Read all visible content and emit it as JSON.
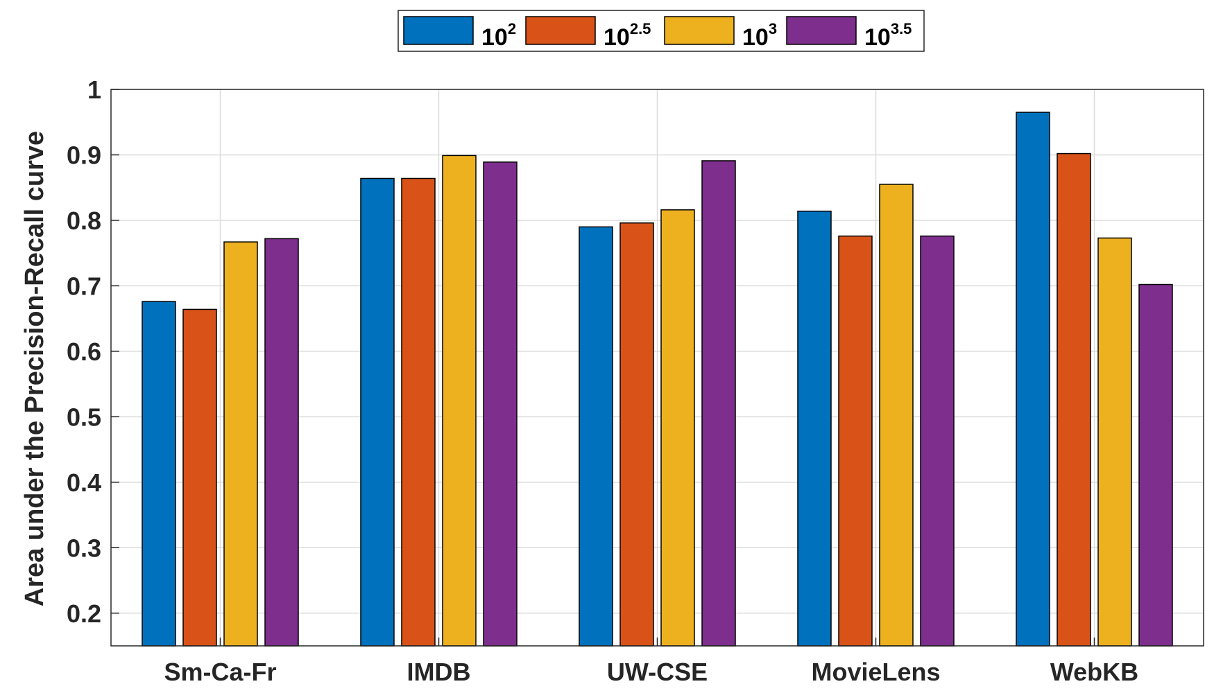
{
  "chart_data": {
    "type": "bar",
    "title": "",
    "xlabel": "",
    "ylabel": "Area under the Precision-Recall curve",
    "ylim": [
      0.15,
      1.0
    ],
    "yticks": [
      "0.2",
      "0.3",
      "0.4",
      "0.5",
      "0.6",
      "0.7",
      "0.8",
      "0.9",
      "1"
    ],
    "grid": true,
    "legend_position": "top-center",
    "categories": [
      "Sm-Ca-Fr",
      "IMDB",
      "UW-CSE",
      "MovieLens",
      "WebKB"
    ],
    "series": [
      {
        "name": "10^2",
        "base": "10",
        "exp": "2",
        "color": "#0072BD",
        "values": [
          0.676,
          0.864,
          0.79,
          0.814,
          0.965
        ]
      },
      {
        "name": "10^2.5",
        "base": "10",
        "exp": "2.5",
        "color": "#D95319",
        "values": [
          0.664,
          0.864,
          0.796,
          0.776,
          0.902
        ]
      },
      {
        "name": "10^3",
        "base": "10",
        "exp": "3",
        "color": "#EDB120",
        "values": [
          0.767,
          0.899,
          0.816,
          0.855,
          0.773
        ]
      },
      {
        "name": "10^3.5",
        "base": "10",
        "exp": "3.5",
        "color": "#7E2F8E",
        "values": [
          0.772,
          0.889,
          0.891,
          0.776,
          0.702
        ]
      }
    ]
  }
}
